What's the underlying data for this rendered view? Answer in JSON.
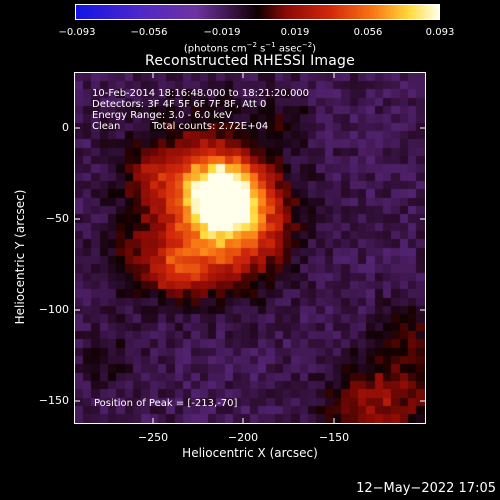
{
  "colorbar": {
    "ticks": [
      "−0.093",
      "−0.056",
      "−0.019",
      "0.019",
      "0.056",
      "0.093"
    ],
    "units_text": "(photons cm",
    "units_exp1": "−2",
    "units_mid1": " s",
    "units_exp2": "−1",
    "units_mid2": " asec",
    "units_exp3": "−2",
    "units_end": ")"
  },
  "title": "Reconstructed RHESSI Image",
  "annotation": {
    "line1": "10-Feb-2014 18:16:48.000 to 18:21:20.000",
    "line2": "Detectors: 3F 4F 5F 6F 7F 8F, Att 0",
    "line3": "Energy Range: 3.0 - 6.0 keV",
    "line4_a": "Clean",
    "line4_b": "Total counts: 2.72E+04"
  },
  "peak_text": "Position of Peak = [-213,-70]",
  "axes": {
    "x_label": "Heliocentric X (arcsec)",
    "y_label": "Heliocentric Y (arcsec)",
    "x_ticks": [
      "−250",
      "−200",
      "−150"
    ],
    "y_ticks": [
      "0",
      "−50",
      "−100",
      "−150"
    ]
  },
  "footer_date": "12−May−2022 17:05",
  "colors": {
    "background": "#000000",
    "frame": "#ffffff"
  }
}
